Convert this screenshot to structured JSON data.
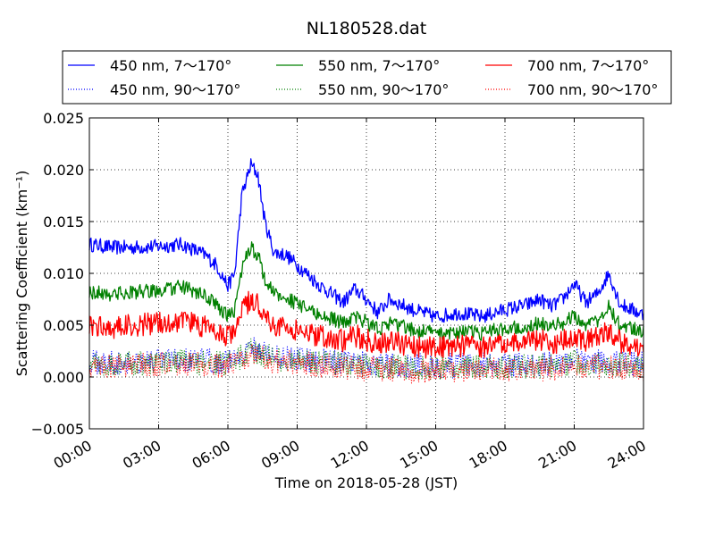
{
  "chart_data": {
    "type": "line",
    "title": "NL180528.dat",
    "xlabel": "Time on 2018-05-28 (JST)",
    "ylabel": "Scattering Coefficient (km⁻¹)",
    "x_unit": "hours",
    "xlim": [
      0,
      24
    ],
    "ylim": [
      -0.005,
      0.025
    ],
    "x_ticks": [
      0,
      3,
      6,
      9,
      12,
      15,
      18,
      21,
      24
    ],
    "x_tick_labels": [
      "00:00",
      "03:00",
      "06:00",
      "09:00",
      "12:00",
      "15:00",
      "18:00",
      "21:00",
      "24:00"
    ],
    "y_ticks": [
      -0.005,
      0.0,
      0.005,
      0.01,
      0.015,
      0.02,
      0.025
    ],
    "y_tick_labels": [
      "−0.005",
      "0.000",
      "0.005",
      "0.010",
      "0.015",
      "0.020",
      "0.025"
    ],
    "grid": true,
    "legend_position": "top",
    "series": [
      {
        "name": "450 nm, 7～170°",
        "color": "#0000ff",
        "style": "solid",
        "x": [
          0,
          1,
          2,
          3,
          4,
          5,
          5.5,
          6,
          6.3,
          6.6,
          7,
          7.3,
          7.6,
          8,
          8.5,
          9,
          10,
          11,
          11.5,
          12,
          12.5,
          13,
          14,
          15,
          16,
          17,
          18,
          19,
          19.5,
          20,
          20.5,
          21,
          21.5,
          22,
          22.5,
          23,
          24
        ],
        "values": [
          0.0128,
          0.0125,
          0.0125,
          0.0126,
          0.0128,
          0.0118,
          0.0108,
          0.0088,
          0.01,
          0.0175,
          0.0205,
          0.0195,
          0.015,
          0.012,
          0.0118,
          0.0108,
          0.0088,
          0.0072,
          0.0085,
          0.0075,
          0.0062,
          0.0075,
          0.0065,
          0.0058,
          0.0062,
          0.0058,
          0.0065,
          0.007,
          0.0075,
          0.0068,
          0.0075,
          0.009,
          0.0072,
          0.008,
          0.01,
          0.007,
          0.006
        ]
      },
      {
        "name": "450 nm, 90～170°",
        "color": "#0000ff",
        "style": "dotted",
        "x": [
          0,
          2,
          4,
          6,
          6.5,
          7,
          7.5,
          8,
          10,
          12,
          14,
          16,
          18,
          20,
          21,
          22,
          24
        ],
        "values": [
          0.0014,
          0.0015,
          0.0016,
          0.0015,
          0.0022,
          0.0028,
          0.0025,
          0.002,
          0.0016,
          0.0013,
          0.0011,
          0.0011,
          0.0012,
          0.0013,
          0.0016,
          0.0015,
          0.0012
        ]
      },
      {
        "name": "550 nm, 7～170°",
        "color": "#008000",
        "style": "solid",
        "x": [
          0,
          1,
          2,
          3,
          4,
          5,
          5.5,
          6,
          6.3,
          6.6,
          7,
          7.3,
          7.6,
          8,
          8.5,
          9,
          10,
          11,
          11.5,
          12,
          12.5,
          13,
          14,
          15,
          16,
          17,
          18,
          19,
          19.5,
          20,
          20.5,
          21,
          21.5,
          22,
          22.5,
          23,
          24
        ],
        "values": [
          0.0082,
          0.008,
          0.0082,
          0.0083,
          0.0087,
          0.0078,
          0.007,
          0.0058,
          0.0065,
          0.0105,
          0.0125,
          0.0118,
          0.0095,
          0.008,
          0.0077,
          0.007,
          0.006,
          0.0052,
          0.0058,
          0.0053,
          0.0046,
          0.0052,
          0.0046,
          0.0042,
          0.0044,
          0.0042,
          0.0047,
          0.005,
          0.0052,
          0.0048,
          0.0052,
          0.006,
          0.005,
          0.0055,
          0.0068,
          0.005,
          0.0043
        ]
      },
      {
        "name": "550 nm, 90～170°",
        "color": "#008000",
        "style": "dotted",
        "x": [
          0,
          2,
          4,
          6,
          6.5,
          7,
          7.5,
          8,
          10,
          12,
          14,
          16,
          18,
          20,
          21,
          22,
          24
        ],
        "values": [
          0.0012,
          0.0013,
          0.0014,
          0.0013,
          0.0019,
          0.0025,
          0.0022,
          0.0018,
          0.0014,
          0.0011,
          0.0009,
          0.0009,
          0.001,
          0.0011,
          0.0014,
          0.0013,
          0.001
        ]
      },
      {
        "name": "700 nm, 7～170°",
        "color": "#ff0000",
        "style": "solid",
        "x": [
          0,
          1,
          2,
          3,
          4,
          5,
          5.5,
          6,
          6.3,
          6.6,
          7,
          7.3,
          7.6,
          8,
          8.5,
          9,
          10,
          11,
          11.5,
          12,
          12.5,
          13,
          14,
          15,
          16,
          17,
          18,
          19,
          19.5,
          20,
          20.5,
          21,
          21.5,
          22,
          22.5,
          23,
          24
        ],
        "values": [
          0.005,
          0.0048,
          0.005,
          0.0052,
          0.0055,
          0.0048,
          0.0043,
          0.0038,
          0.0045,
          0.0065,
          0.0075,
          0.007,
          0.006,
          0.005,
          0.0048,
          0.0044,
          0.004,
          0.0035,
          0.004,
          0.0036,
          0.003,
          0.0035,
          0.003,
          0.0028,
          0.003,
          0.0028,
          0.0032,
          0.0034,
          0.0036,
          0.0032,
          0.0036,
          0.004,
          0.0034,
          0.0038,
          0.0045,
          0.0034,
          0.0028
        ]
      },
      {
        "name": "700 nm, 90～170°",
        "color": "#ff0000",
        "style": "dotted",
        "x": [
          0,
          2,
          4,
          6,
          6.5,
          7,
          7.5,
          8,
          10,
          12,
          14,
          16,
          18,
          20,
          21,
          22,
          24
        ],
        "values": [
          0.001,
          0.0011,
          0.0012,
          0.0011,
          0.0016,
          0.0022,
          0.0019,
          0.0015,
          0.0011,
          0.0008,
          0.0006,
          0.0006,
          0.0007,
          0.0008,
          0.0011,
          0.001,
          0.0007
        ]
      }
    ]
  }
}
